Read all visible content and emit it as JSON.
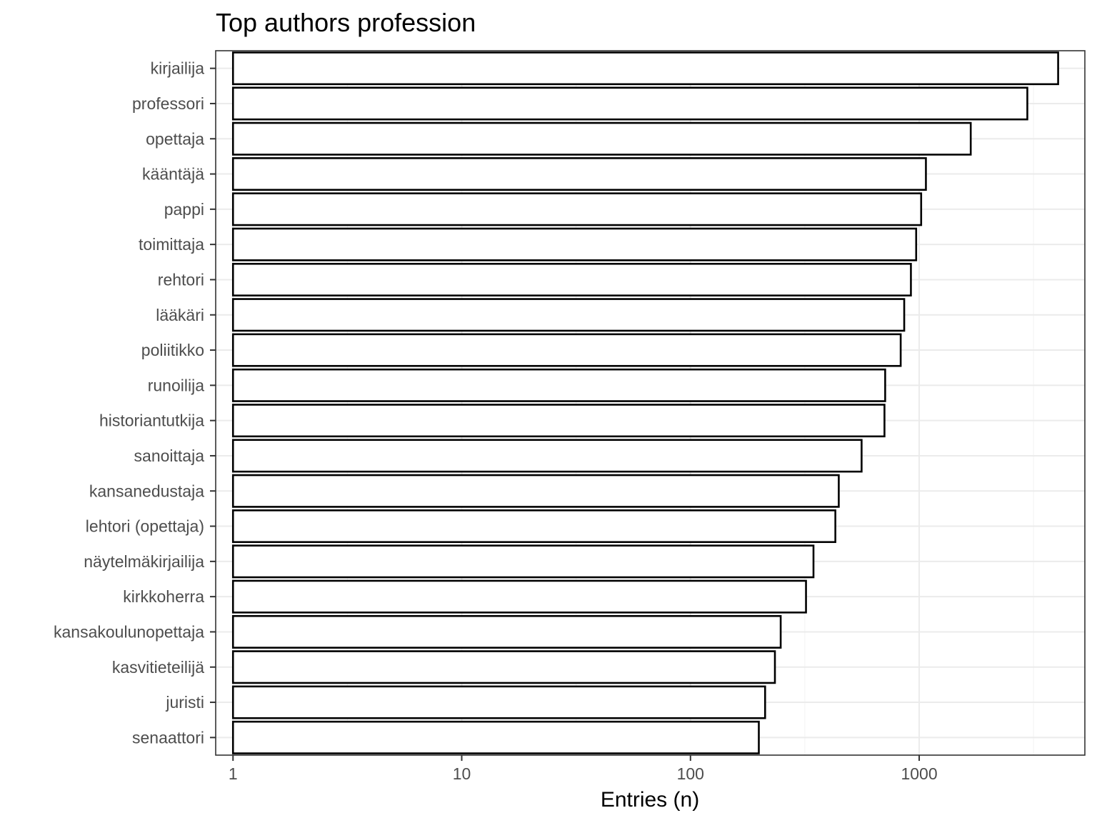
{
  "chart_data": {
    "type": "bar",
    "orientation": "horizontal",
    "title": "Top authors profession",
    "xlabel": "Entries (n)",
    "ylabel": "",
    "xscale": "log10",
    "xlim": [
      0.84,
      5300
    ],
    "xticks": [
      1,
      10,
      100,
      1000
    ],
    "xtick_labels": [
      "1",
      "10",
      "100",
      "1000"
    ],
    "grid": true,
    "legend": "none",
    "categories": [
      "kirjailija",
      "professori",
      "opettaja",
      "kääntäjä",
      "pappi",
      "toimittaja",
      "rehtori",
      "lääkäri",
      "poliitikko",
      "runoilija",
      "historiantutkija",
      "sanoittaja",
      "kansanedustaja",
      "lehtori (opettaja)",
      "näytelmäkirjailija",
      "kirkkoherra",
      "kansakoulunopettaja",
      "kasvitieteilijä",
      "juristi",
      "senaattori"
    ],
    "values": [
      4050,
      2970,
      1680,
      1070,
      1020,
      970,
      920,
      860,
      830,
      710,
      705,
      560,
      445,
      430,
      345,
      320,
      248,
      234,
      212,
      199
    ],
    "colors": {
      "bar_fill": "#ffffff",
      "bar_stroke": "#000000",
      "panel_border": "#333333",
      "grid_major": "#ebebeb",
      "grid_minor": "#f5f5f5"
    }
  }
}
